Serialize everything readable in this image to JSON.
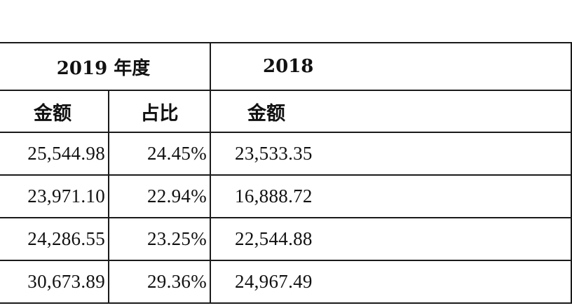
{
  "table": {
    "years": [
      "2019 年度",
      "2018"
    ],
    "headers": [
      "金额",
      "占比",
      "金额"
    ],
    "rows": [
      [
        "25,544.98",
        "24.45%",
        "23,533.35"
      ],
      [
        "23,971.10",
        "22.94%",
        "16,888.72"
      ],
      [
        "24,286.55",
        "23.25%",
        "22,544.88"
      ],
      [
        "30,673.89",
        "29.36%",
        "24,967.49"
      ]
    ]
  }
}
